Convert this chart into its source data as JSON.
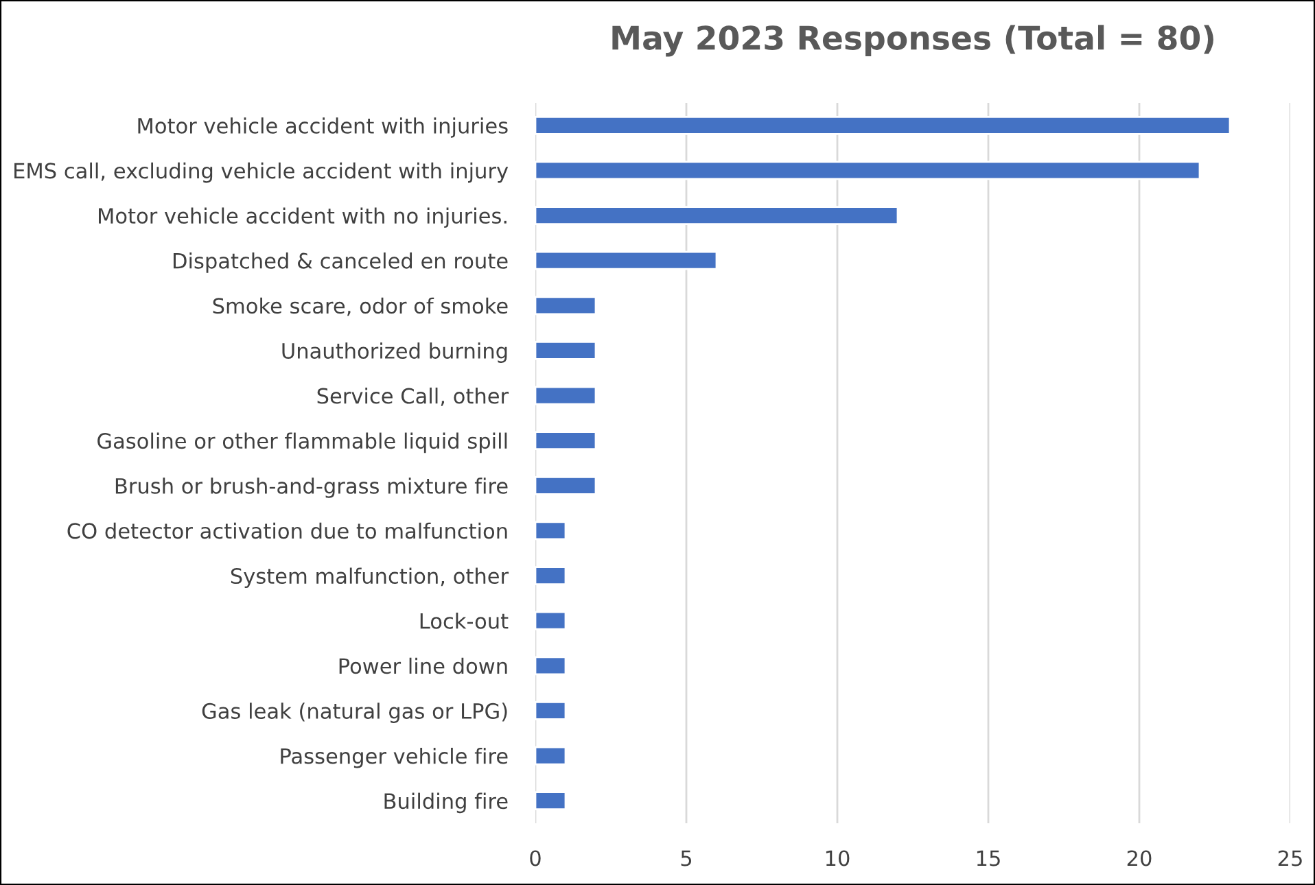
{
  "chart_data": {
    "type": "bar",
    "orientation": "horizontal",
    "title": "May 2023 Responses (Total = 80)",
    "categories": [
      "Motor vehicle accident with injuries",
      "EMS call, excluding vehicle accident with injury",
      "Motor vehicle accident with no injuries.",
      "Dispatched & canceled en route",
      "Smoke scare, odor of smoke",
      "Unauthorized burning",
      "Service Call, other",
      "Gasoline or other flammable liquid spill",
      "Brush or brush-and-grass mixture fire",
      "CO detector activation due to malfunction",
      "System malfunction, other",
      "Lock-out",
      "Power line down",
      "Gas leak (natural gas or LPG)",
      "Passenger vehicle fire",
      "Building fire"
    ],
    "values": [
      23,
      22,
      12,
      6,
      2,
      2,
      2,
      2,
      2,
      1,
      1,
      1,
      1,
      1,
      1,
      1
    ],
    "color": "#4472c4",
    "xlim": [
      0,
      25
    ],
    "xticks": [
      0,
      5,
      10,
      15,
      20,
      25
    ],
    "grid": "x"
  }
}
